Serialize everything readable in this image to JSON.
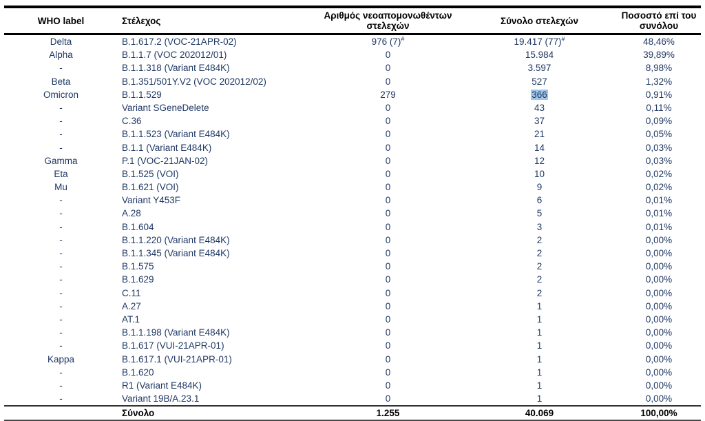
{
  "table": {
    "columns": [
      "WHO label",
      "Στέλεχος",
      "Αριθμός νεοαπομονωθέντων στελεχών",
      "Σύνολο στελεχών",
      "Ποσοστό επί του συνόλου"
    ],
    "text_color": "#1F3864",
    "highlight_color": "#9FC5E8",
    "rows": [
      {
        "who": "Delta",
        "strain": "B.1.617.2 (VOC-21APR-02)",
        "new": "976 (7)",
        "new_sup": "#",
        "total": "19.417 (77)",
        "total_sup": "#",
        "pct": "48,46%"
      },
      {
        "who": "Alpha",
        "strain": "B.1.1.7 (VOC 202012/01)",
        "new": "0",
        "total": "15.984",
        "pct": "39,89%"
      },
      {
        "who": "-",
        "strain": "B.1.1.318 (Variant E484K)",
        "new": "0",
        "total": "3.597",
        "pct": "8,98%"
      },
      {
        "who": "Beta",
        "strain": "B.1.351/501Y.V2 (VOC 202012/02)",
        "new": "0",
        "total": "527",
        "pct": "1,32%"
      },
      {
        "who": "Omicron",
        "strain": "B.1.1.529",
        "new": "279",
        "total": "366",
        "total_highlight": true,
        "pct": "0,91%"
      },
      {
        "who": "-",
        "strain": "Variant SGeneDelete",
        "new": "0",
        "total": "43",
        "pct": "0,11%"
      },
      {
        "who": "-",
        "strain": "C.36",
        "new": "0",
        "total": "37",
        "pct": "0,09%"
      },
      {
        "who": "-",
        "strain": "B.1.1.523 (Variant E484K)",
        "new": "0",
        "total": "21",
        "pct": "0,05%"
      },
      {
        "who": "-",
        "strain": "B.1.1 (Variant E484K)",
        "new": "0",
        "total": "14",
        "pct": "0,03%"
      },
      {
        "who": "Gamma",
        "strain": "P.1 (VOC-21JAN-02)",
        "new": "0",
        "total": "12",
        "pct": "0,03%"
      },
      {
        "who": "Eta",
        "strain": "B.1.525 (VOI)",
        "new": "0",
        "total": "10",
        "pct": "0,02%"
      },
      {
        "who": "Mu",
        "strain": "B.1.621 (VOI)",
        "new": "0",
        "total": "9",
        "pct": "0,02%"
      },
      {
        "who": "-",
        "strain": "Variant Y453F",
        "new": "0",
        "total": "6",
        "pct": "0,01%"
      },
      {
        "who": "-",
        "strain": "A.28",
        "new": "0",
        "total": "5",
        "pct": "0,01%"
      },
      {
        "who": "-",
        "strain": "B.1.604",
        "new": "0",
        "total": "3",
        "pct": "0,01%"
      },
      {
        "who": "-",
        "strain": "B.1.1.220 (Variant E484K)",
        "new": "0",
        "total": "2",
        "pct": "0,00%"
      },
      {
        "who": "-",
        "strain": "B.1.1.345 (Variant E484K)",
        "new": "0",
        "total": "2",
        "pct": "0,00%"
      },
      {
        "who": "-",
        "strain": "B.1.575",
        "new": "0",
        "total": "2",
        "pct": "0,00%"
      },
      {
        "who": "-",
        "strain": "B.1.629",
        "new": "0",
        "total": "2",
        "pct": "0,00%"
      },
      {
        "who": "-",
        "strain": "C.11",
        "new": "0",
        "total": "2",
        "pct": "0,00%"
      },
      {
        "who": "-",
        "strain": "A.27",
        "new": "0",
        "total": "1",
        "pct": "0,00%"
      },
      {
        "who": "-",
        "strain": "AT.1",
        "new": "0",
        "total": "1",
        "pct": "0,00%"
      },
      {
        "who": "-",
        "strain": "B.1.1.198 (Variant E484K)",
        "new": "0",
        "total": "1",
        "pct": "0,00%"
      },
      {
        "who": "-",
        "strain": "B.1.617 (VUI-21APR-01)",
        "new": "0",
        "total": "1",
        "pct": "0,00%"
      },
      {
        "who": "Kappa",
        "strain": "B.1.617.1 (VUI-21APR-01)",
        "new": "0",
        "total": "1",
        "pct": "0,00%"
      },
      {
        "who": "-",
        "strain": "B.1.620",
        "new": "0",
        "total": "1",
        "pct": "0,00%"
      },
      {
        "who": "-",
        "strain": "R1 (Variant E484K)",
        "new": "0",
        "total": "1",
        "pct": "0,00%"
      },
      {
        "who": "-",
        "strain": "Variant 19B/A.23.1",
        "new": "0",
        "total": "1",
        "pct": "0,00%"
      }
    ],
    "total": {
      "label": "Σύνολο",
      "new": "1.255",
      "total": "40.069",
      "pct": "100,00%"
    }
  }
}
